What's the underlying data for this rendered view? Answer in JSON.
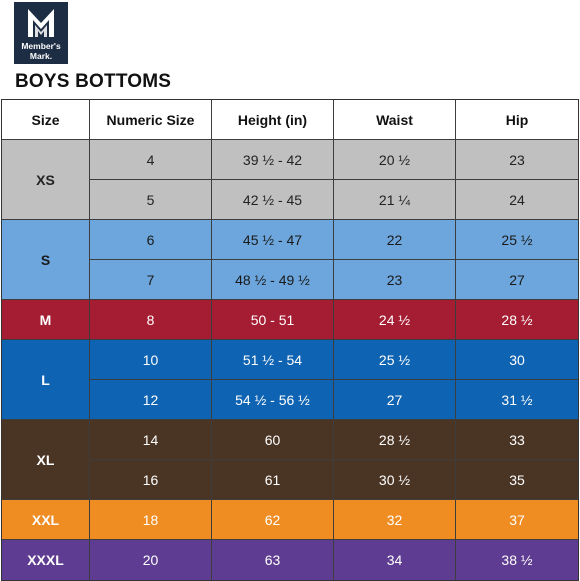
{
  "logo": {
    "line1": "Member's",
    "line2": "Mark.",
    "icon": "mm-monogram-icon"
  },
  "title": "BOYS BOTTOMS",
  "headers": [
    "Size",
    "Numeric Size",
    "Height (in)",
    "Waist",
    "Hip"
  ],
  "groups": [
    {
      "size": "XS",
      "bg": "#c0c0c0",
      "text": "#222222",
      "rows": [
        [
          "4",
          "39 ½ - 42",
          "20 ½",
          "23"
        ],
        [
          "5",
          "42 ½ - 45",
          "21 ¼",
          "24"
        ]
      ]
    },
    {
      "size": "S",
      "bg": "#6ca6dc",
      "text": "#1a1a1a",
      "rows": [
        [
          "6",
          "45 ½ - 47",
          "22",
          "25 ½"
        ],
        [
          "7",
          "48 ½ - 49 ½",
          "23",
          "27"
        ]
      ]
    },
    {
      "size": "M",
      "bg": "#a51d33",
      "text": "#ffffff",
      "rows": [
        [
          "8",
          "50 - 51",
          "24 ½",
          "28 ½"
        ]
      ]
    },
    {
      "size": "L",
      "bg": "#0e63b2",
      "text": "#ffffff",
      "rows": [
        [
          "10",
          "51 ½ - 54",
          "25 ½",
          "30"
        ],
        [
          "12",
          "54 ½ - 56 ½",
          "27",
          "31 ½"
        ]
      ]
    },
    {
      "size": "XL",
      "bg": "#4a3424",
      "text": "#ffffff",
      "rows": [
        [
          "14",
          "60",
          "28 ½",
          "33"
        ],
        [
          "16",
          "61",
          "30 ½",
          "35"
        ]
      ]
    },
    {
      "size": "XXL",
      "bg": "#ef8c22",
      "text": "#ffffff",
      "rows": [
        [
          "18",
          "62",
          "32",
          "37"
        ]
      ]
    },
    {
      "size": "XXXL",
      "bg": "#5e3c91",
      "text": "#ffffff",
      "rows": [
        [
          "20",
          "63",
          "34",
          "38 ½"
        ]
      ]
    }
  ]
}
